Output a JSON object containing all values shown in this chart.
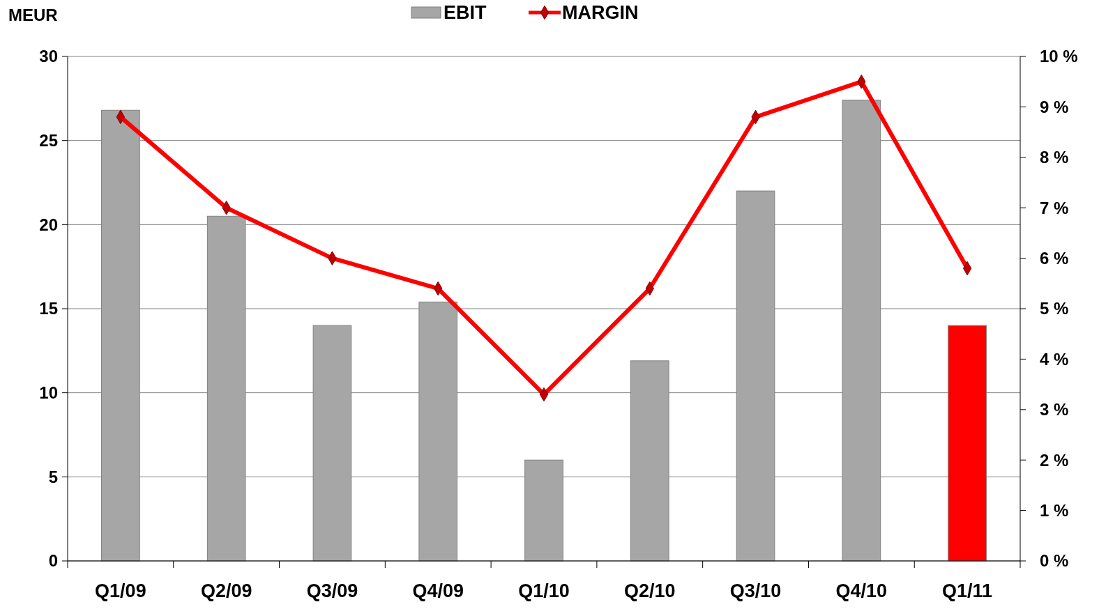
{
  "chart_data": {
    "type": "bar",
    "ylabel": "MEUR",
    "categories": [
      "Q1/09",
      "Q2/09",
      "Q3/09",
      "Q4/09",
      "Q1/10",
      "Q2/10",
      "Q3/10",
      "Q4/10",
      "Q1/11"
    ],
    "series": [
      {
        "name": "EBIT",
        "color": "#a6a6a6",
        "colors": [
          "#a6a6a6",
          "#a6a6a6",
          "#a6a6a6",
          "#a6a6a6",
          "#a6a6a6",
          "#a6a6a6",
          "#a6a6a6",
          "#a6a6a6",
          "#ff0000"
        ],
        "values": [
          26.8,
          20.5,
          14.0,
          15.4,
          6.0,
          11.9,
          22.0,
          27.4,
          14.0
        ]
      },
      {
        "name": "MARGIN",
        "type": "line",
        "axis": "y2",
        "color": "#ff0000",
        "marker": "diamond",
        "values": [
          8.8,
          7.0,
          6.0,
          5.4,
          3.3,
          5.4,
          8.8,
          9.5,
          5.8
        ]
      }
    ],
    "ylim": [
      0,
      30
    ],
    "yticks": [
      0,
      5,
      10,
      15,
      20,
      25,
      30
    ],
    "y2lim": [
      0,
      10
    ],
    "y2ticks": [
      {
        "value": 0,
        "label": "0 %"
      },
      {
        "value": 1,
        "label": "1 %"
      },
      {
        "value": 2,
        "label": "2 %"
      },
      {
        "value": 3,
        "label": "3 %"
      },
      {
        "value": 4,
        "label": "4 %"
      },
      {
        "value": 5,
        "label": "5 %"
      },
      {
        "value": 6,
        "label": "6 %"
      },
      {
        "value": 7,
        "label": "7 %"
      },
      {
        "value": 8,
        "label": "8 %"
      },
      {
        "value": 9,
        "label": "9 %"
      },
      {
        "value": 10,
        "label": "10 %"
      }
    ],
    "grid": "y",
    "legend": "top"
  }
}
